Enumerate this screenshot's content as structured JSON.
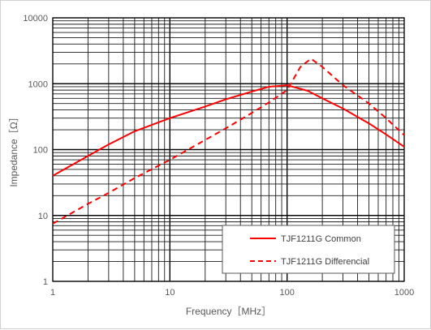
{
  "chart_data": {
    "type": "line",
    "x_scale": "log",
    "y_scale": "log",
    "xlim": [
      1,
      1000
    ],
    "ylim": [
      1,
      10000
    ],
    "xlabel": "Frequency［MHz］",
    "ylabel": "Impedance［Ω］",
    "x_ticks": [
      "1",
      "10",
      "100",
      "1000"
    ],
    "y_ticks": [
      "1",
      "10",
      "100",
      "1000",
      "10000"
    ],
    "grid": true,
    "legend_position": "bottom-right",
    "series": [
      {
        "name": "TJF1211G Common",
        "style": "solid",
        "color": "#ff0000",
        "x": [
          1,
          2,
          3,
          5,
          10,
          20,
          30,
          50,
          70,
          100,
          150,
          200,
          300,
          500,
          700,
          1000
        ],
        "y": [
          40,
          80,
          120,
          190,
          300,
          450,
          580,
          760,
          900,
          950,
          780,
          600,
          420,
          250,
          170,
          110
        ]
      },
      {
        "name": "TJF1211G Differencial",
        "style": "dashed",
        "color": "#ff0000",
        "x": [
          1,
          2,
          3,
          5,
          10,
          20,
          30,
          50,
          70,
          100,
          130,
          160,
          200,
          300,
          500,
          700,
          1000
        ],
        "y": [
          7.5,
          15,
          22,
          37,
          70,
          140,
          210,
          360,
          520,
          800,
          1800,
          2400,
          1800,
          950,
          500,
          300,
          165
        ]
      }
    ]
  }
}
